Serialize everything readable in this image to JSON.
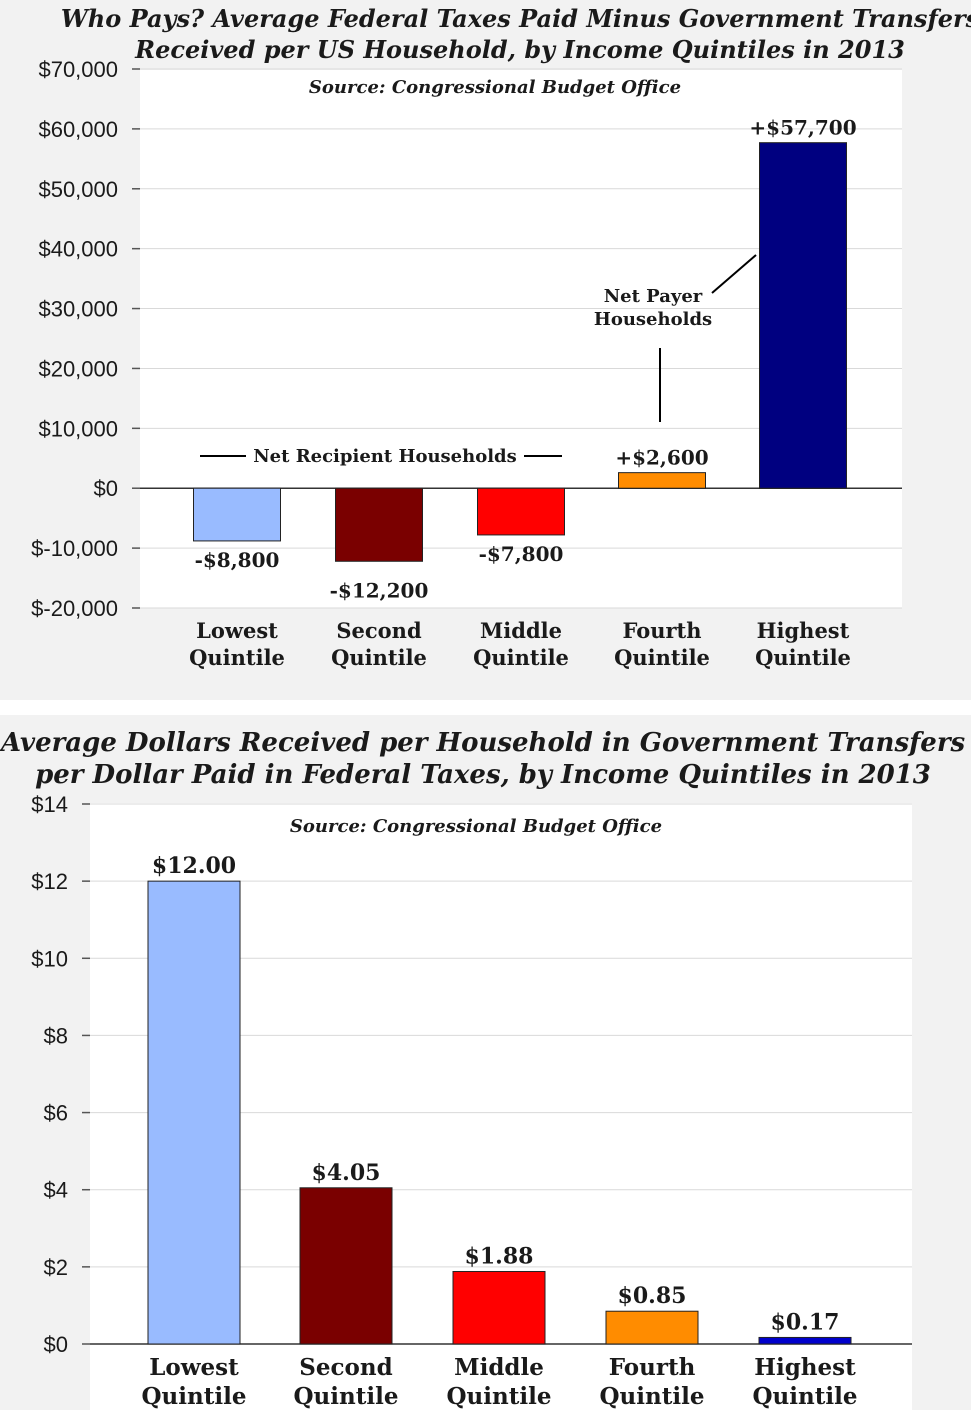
{
  "chart_data": [
    {
      "type": "bar",
      "title": "Who Pays? Average Federal Taxes Paid Minus Government Transfers",
      "subtitle": "Received per US Household, by Income Quintiles in 2013",
      "source": "Source: Congressional Budget Office",
      "categories": [
        {
          "line1": "Lowest",
          "line2": "Quintile"
        },
        {
          "line1": "Second",
          "line2": "Quintile"
        },
        {
          "line1": "Middle",
          "line2": "Quintile"
        },
        {
          "line1": "Fourth",
          "line2": "Quintile"
        },
        {
          "line1": "Highest",
          "line2": "Quintile"
        }
      ],
      "values": [
        -8800,
        -12200,
        -7800,
        2600,
        57700
      ],
      "value_labels": [
        "-$8,800",
        "-$12,200",
        "-$7,800",
        "+$2,600",
        "+$57,700"
      ],
      "colors": [
        "#99bbff",
        "#7a0000",
        "#ff0000",
        "#ff8c00",
        "#000080"
      ],
      "ylim": [
        -20000,
        70000
      ],
      "yticks": [
        {
          "value": 70000,
          "label": "$70,000"
        },
        {
          "value": 60000,
          "label": "$60,000"
        },
        {
          "value": 50000,
          "label": "$50,000"
        },
        {
          "value": 40000,
          "label": "$40,000"
        },
        {
          "value": 30000,
          "label": "$30,000"
        },
        {
          "value": 20000,
          "label": "$20,000"
        },
        {
          "value": 10000,
          "label": "$10,000"
        },
        {
          "value": 0,
          "label": "$0"
        },
        {
          "value": -10000,
          "label": "$-10,000"
        },
        {
          "value": -20000,
          "label": "$-20,000"
        }
      ],
      "annotations": {
        "net_recipient": "Net Recipient Households",
        "net_payer_line1": "Net Payer",
        "net_payer_line2": "Households"
      },
      "grid": true
    },
    {
      "type": "bar",
      "title": "Average Dollars Received per Household in Government Transfers",
      "subtitle": "per Dollar Paid in Federal Taxes, by Income Quintiles in 2013",
      "source": "Source: Congressional Budget Office",
      "categories": [
        {
          "line1": "Lowest",
          "line2": "Quintile"
        },
        {
          "line1": "Second",
          "line2": "Quintile"
        },
        {
          "line1": "Middle",
          "line2": "Quintile"
        },
        {
          "line1": "Fourth",
          "line2": "Quintile"
        },
        {
          "line1": "Highest",
          "line2": "Quintile"
        }
      ],
      "values": [
        12.0,
        4.05,
        1.88,
        0.85,
        0.17
      ],
      "value_labels": [
        "$12.00",
        "$4.05",
        "$1.88",
        "$0.85",
        "$0.17"
      ],
      "colors": [
        "#99bbff",
        "#7a0000",
        "#ff0000",
        "#ff8c00",
        "#0000cc"
      ],
      "ylim": [
        0,
        14
      ],
      "yticks": [
        {
          "value": 14,
          "label": "$14"
        },
        {
          "value": 12,
          "label": "$12"
        },
        {
          "value": 10,
          "label": "$10"
        },
        {
          "value": 8,
          "label": "$8"
        },
        {
          "value": 6,
          "label": "$6"
        },
        {
          "value": 4,
          "label": "$4"
        },
        {
          "value": 2,
          "label": "$2"
        },
        {
          "value": 0,
          "label": "$0"
        }
      ],
      "grid": true
    }
  ]
}
